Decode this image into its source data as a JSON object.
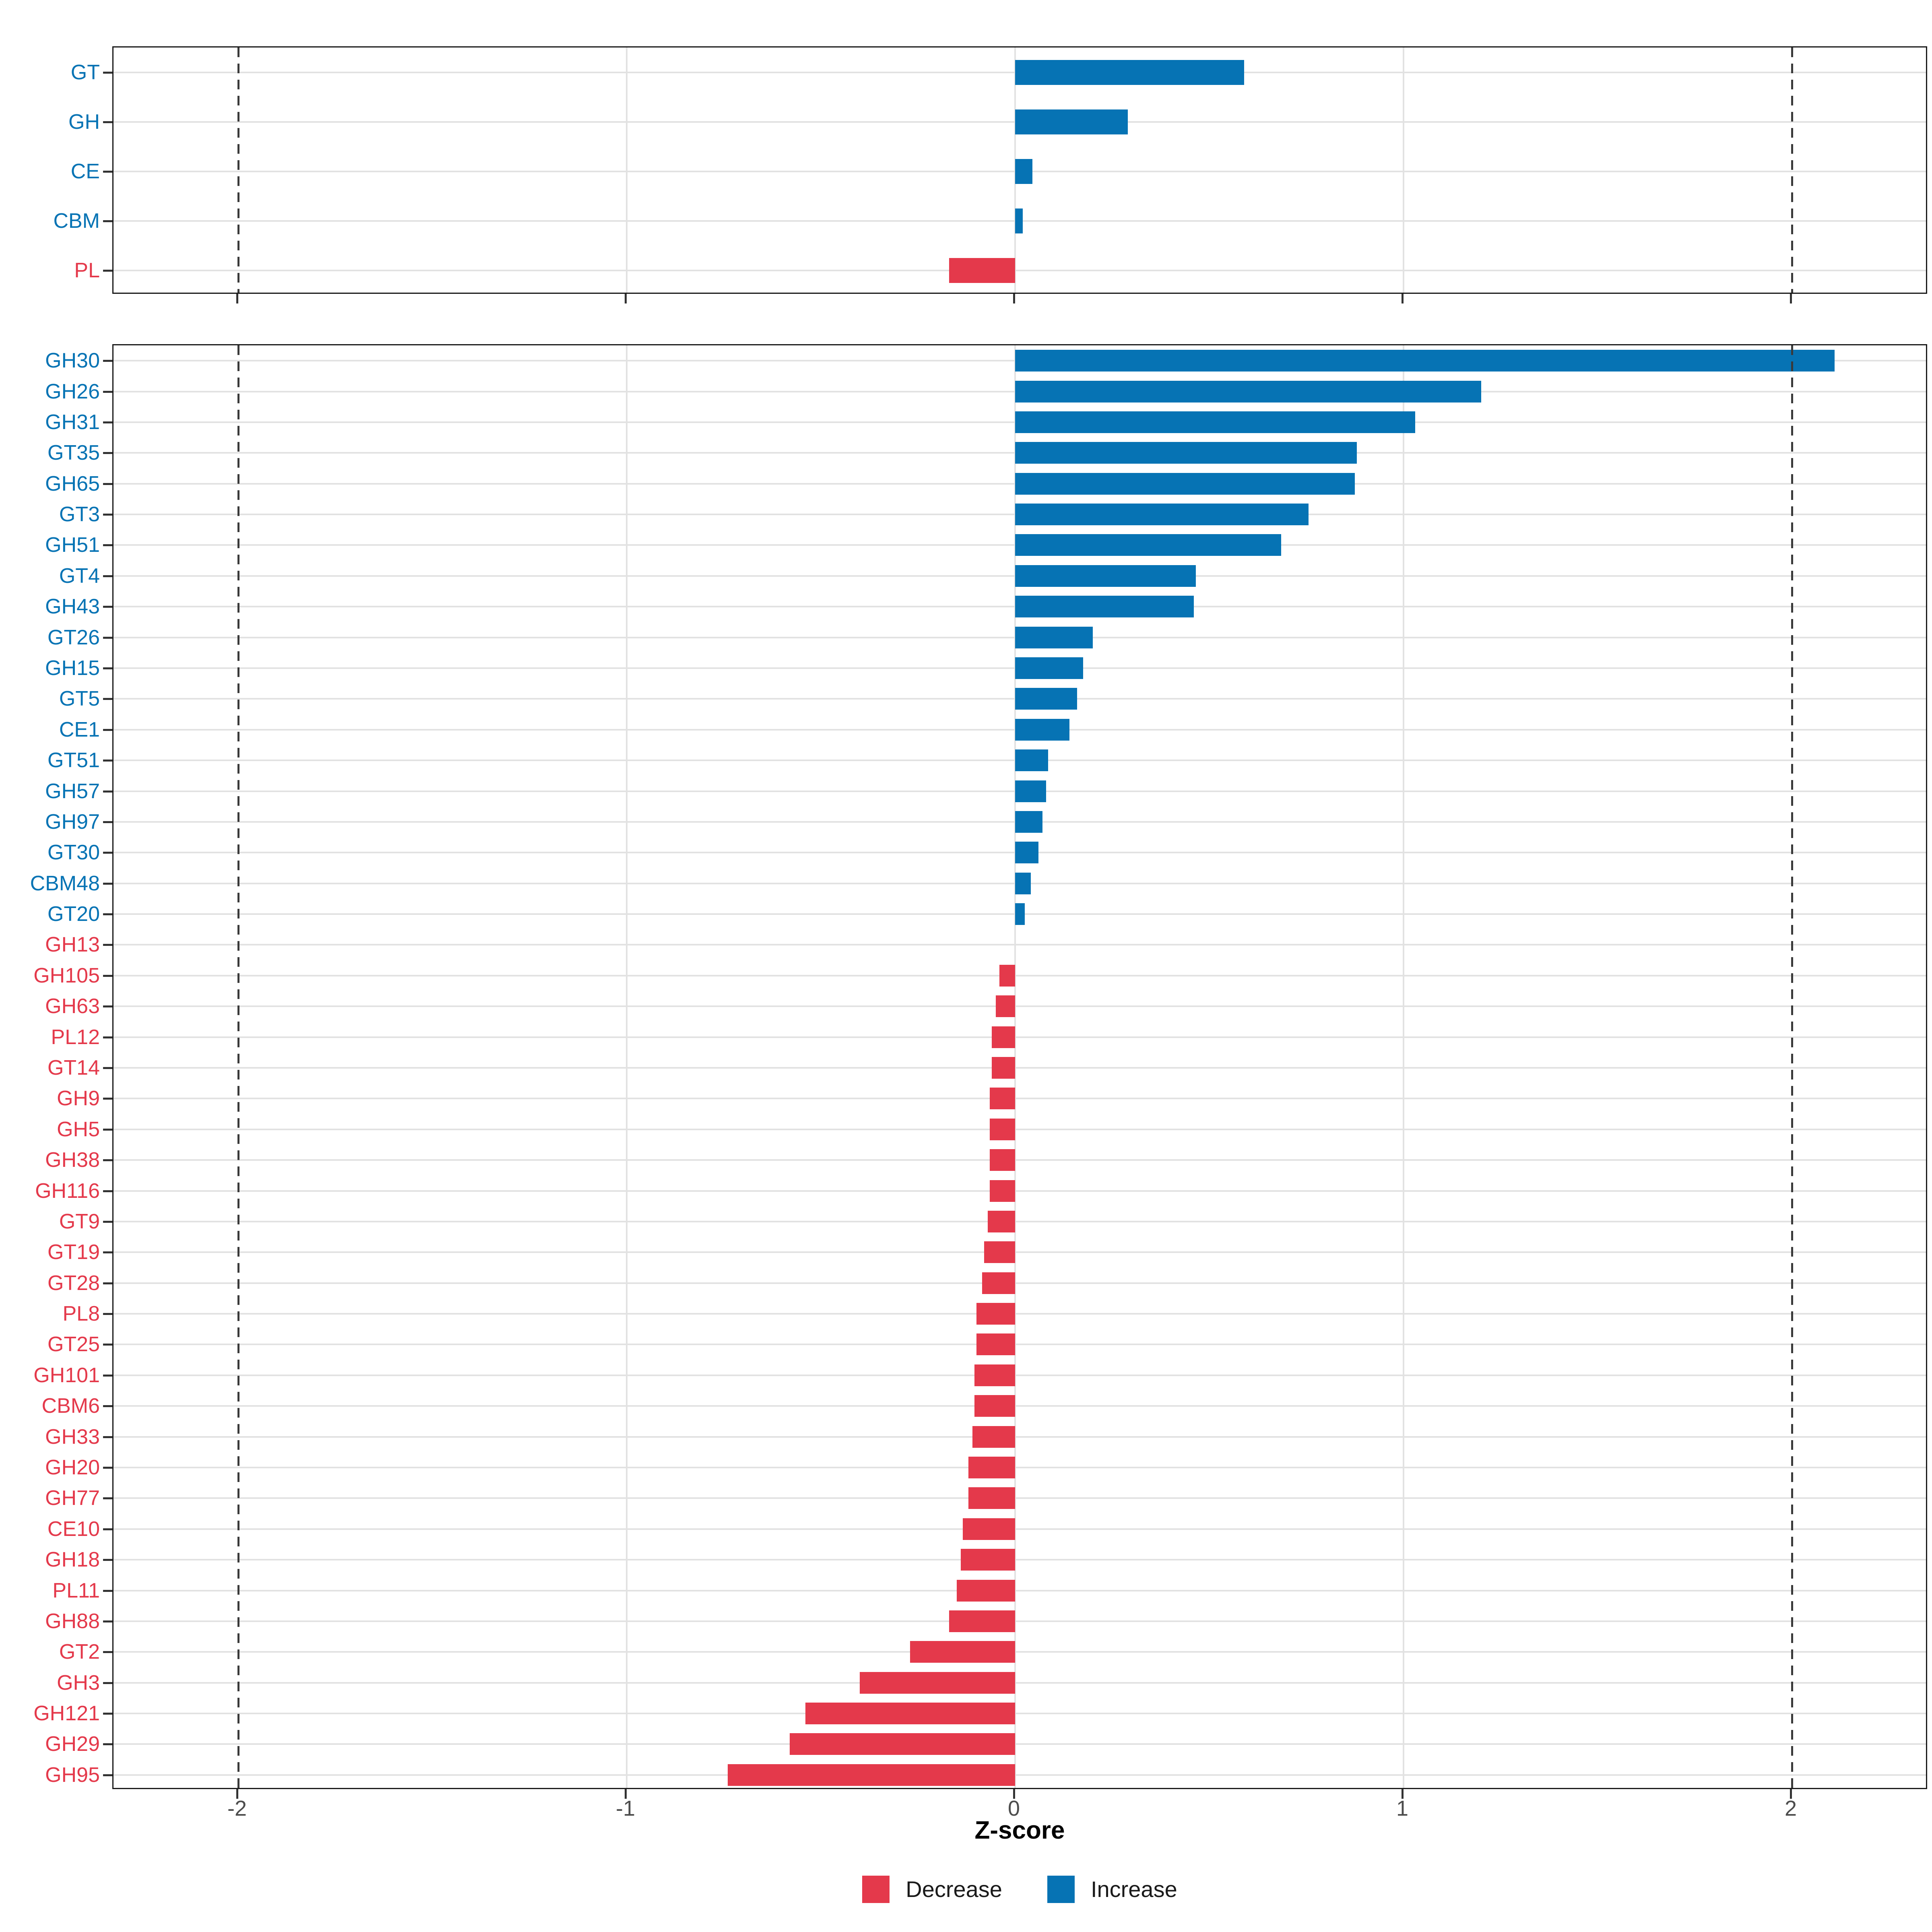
{
  "figure": {
    "xlabel": "Z-score",
    "x_ticks": [
      "-2",
      "-1",
      "0",
      "1",
      "2"
    ],
    "x_tick_values": [
      -2,
      -1,
      0,
      1,
      2
    ],
    "reference_lines": [
      -2,
      2
    ],
    "legend": [
      {
        "label": "Decrease",
        "direction": "decrease",
        "color": "#E4394B"
      },
      {
        "label": "Increase",
        "direction": "increase",
        "color": "#0673B4"
      }
    ],
    "colors": {
      "increase": "#0673B4",
      "decrease": "#E4394B",
      "grid": "#E2E2E2",
      "panel_border": "#1A1A1A",
      "dashed_line": "#3A3A3A",
      "axis_tick": "#333333",
      "tick_label": "#4D4D4D",
      "axis_title": "#000000",
      "background": "#FFFFFF"
    }
  },
  "chart_data": [
    {
      "type": "bar",
      "orientation": "horizontal",
      "panel": "category-summary",
      "title": "",
      "xlabel": "Z-score",
      "ylabel": "",
      "xlim": [
        -2.33,
        2.35
      ],
      "grid_x": [
        -1,
        0,
        1
      ],
      "dashed_x": [
        -2,
        2
      ],
      "legend_position": "bottom",
      "categories": [
        "GT",
        "GH",
        "CE",
        "CBM",
        "PL"
      ],
      "values": [
        0.59,
        0.29,
        0.045,
        0.02,
        -0.17
      ],
      "directions": [
        "increase",
        "increase",
        "increase",
        "increase",
        "decrease"
      ]
    },
    {
      "type": "bar",
      "orientation": "horizontal",
      "panel": "family-detail",
      "title": "",
      "xlabel": "Z-score",
      "ylabel": "",
      "xlim": [
        -2.33,
        2.35
      ],
      "grid_x": [
        -1,
        0,
        1
      ],
      "dashed_x": [
        -2,
        2
      ],
      "legend_position": "bottom",
      "categories": [
        "GH30",
        "GH26",
        "GH31",
        "GT35",
        "GH65",
        "GT3",
        "GH51",
        "GT4",
        "GH43",
        "GT26",
        "GH15",
        "GT5",
        "CE1",
        "GT51",
        "GH57",
        "GH97",
        "GT30",
        "CBM48",
        "GT20",
        "GH13",
        "GH105",
        "GH63",
        "PL12",
        "GT14",
        "GH9",
        "GH5",
        "GH38",
        "GH116",
        "GT9",
        "GT19",
        "GT28",
        "PL8",
        "GT25",
        "GH101",
        "CBM6",
        "GH33",
        "GH20",
        "GH77",
        "CE10",
        "GH18",
        "PL11",
        "GH88",
        "GT2",
        "GH3",
        "GH121",
        "GH29",
        "GH95"
      ],
      "values": [
        2.11,
        1.2,
        1.03,
        0.88,
        0.875,
        0.755,
        0.685,
        0.465,
        0.46,
        0.2,
        0.175,
        0.16,
        0.14,
        0.085,
        0.08,
        0.07,
        0.06,
        0.04,
        0.025,
        0.0,
        -0.04,
        -0.05,
        -0.06,
        -0.06,
        -0.065,
        -0.065,
        -0.065,
        -0.065,
        -0.07,
        -0.08,
        -0.085,
        -0.1,
        -0.1,
        -0.105,
        -0.105,
        -0.11,
        -0.12,
        -0.12,
        -0.135,
        -0.14,
        -0.15,
        -0.17,
        -0.27,
        -0.4,
        -0.54,
        -0.58,
        -0.74
      ],
      "directions": [
        "increase",
        "increase",
        "increase",
        "increase",
        "increase",
        "increase",
        "increase",
        "increase",
        "increase",
        "increase",
        "increase",
        "increase",
        "increase",
        "increase",
        "increase",
        "increase",
        "increase",
        "increase",
        "increase",
        "decrease",
        "decrease",
        "decrease",
        "decrease",
        "decrease",
        "decrease",
        "decrease",
        "decrease",
        "decrease",
        "decrease",
        "decrease",
        "decrease",
        "decrease",
        "decrease",
        "decrease",
        "decrease",
        "decrease",
        "decrease",
        "decrease",
        "decrease",
        "decrease",
        "decrease",
        "decrease",
        "decrease",
        "decrease",
        "decrease",
        "decrease",
        "decrease"
      ]
    }
  ]
}
